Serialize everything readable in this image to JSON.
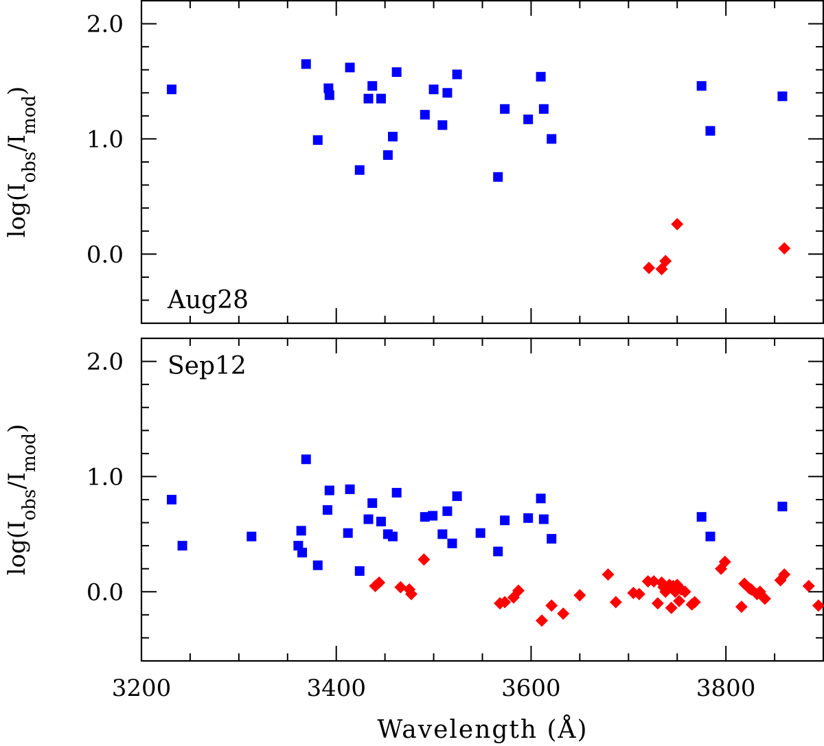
{
  "chart_data": {
    "type": "scatter",
    "xlabel": "Wavelength (Å)",
    "ylabel": {
      "prefix": "log(I",
      "num_sub": "obs",
      "mid": "/I",
      "den_sub": "mod",
      "suffix": ")"
    },
    "xlim": [
      3200,
      3900
    ],
    "xticks": [
      3200,
      3400,
      3600,
      3800
    ],
    "colors": {
      "blue_squares": "#0000ff",
      "red_diamonds": "#ff0000"
    },
    "panels": [
      {
        "name": "Aug28",
        "label": "Aug28",
        "ylim": [
          -0.6,
          2.2
        ],
        "yticks": [
          {
            "v": 0.0,
            "t": "0.0"
          },
          {
            "v": 1.0,
            "t": "1.0"
          },
          {
            "v": 2.0,
            "t": "2.0"
          }
        ],
        "series": [
          {
            "name": "blue_squares",
            "marker": "square",
            "points": [
              [
                3231,
                1.43
              ],
              [
                3369,
                1.65
              ],
              [
                3381,
                0.99
              ],
              [
                3392,
                1.44
              ],
              [
                3393,
                1.38
              ],
              [
                3414,
                1.62
              ],
              [
                3424,
                0.73
              ],
              [
                3433,
                1.35
              ],
              [
                3437,
                1.46
              ],
              [
                3446,
                1.35
              ],
              [
                3453,
                0.86
              ],
              [
                3458,
                1.02
              ],
              [
                3462,
                1.58
              ],
              [
                3491,
                1.21
              ],
              [
                3500,
                1.43
              ],
              [
                3509,
                1.12
              ],
              [
                3514,
                1.4
              ],
              [
                3524,
                1.56
              ],
              [
                3566,
                0.67
              ],
              [
                3573,
                1.26
              ],
              [
                3597,
                1.17
              ],
              [
                3610,
                1.54
              ],
              [
                3613,
                1.26
              ],
              [
                3621,
                1.0
              ],
              [
                3775,
                1.46
              ],
              [
                3784,
                1.07
              ],
              [
                3858,
                1.37
              ]
            ]
          },
          {
            "name": "red_diamonds",
            "marker": "diamond",
            "points": [
              [
                3721,
                -0.12
              ],
              [
                3734,
                -0.13
              ],
              [
                3738,
                -0.06
              ],
              [
                3750,
                0.26
              ],
              [
                3860,
                0.05
              ]
            ]
          }
        ]
      },
      {
        "name": "Sep12",
        "label": "Sep12",
        "ylim": [
          -0.6,
          2.2
        ],
        "yticks": [
          {
            "v": 0.0,
            "t": "0.0"
          },
          {
            "v": 1.0,
            "t": "1.0"
          },
          {
            "v": 2.0,
            "t": "2.0"
          }
        ],
        "series": [
          {
            "name": "blue_squares",
            "marker": "square",
            "points": [
              [
                3231,
                0.8
              ],
              [
                3242,
                0.4
              ],
              [
                3313,
                0.48
              ],
              [
                3361,
                0.4
              ],
              [
                3364,
                0.53
              ],
              [
                3365,
                0.34
              ],
              [
                3369,
                1.15
              ],
              [
                3381,
                0.23
              ],
              [
                3391,
                0.71
              ],
              [
                3393,
                0.88
              ],
              [
                3412,
                0.51
              ],
              [
                3414,
                0.89
              ],
              [
                3424,
                0.18
              ],
              [
                3433,
                0.63
              ],
              [
                3437,
                0.77
              ],
              [
                3446,
                0.61
              ],
              [
                3453,
                0.5
              ],
              [
                3458,
                0.48
              ],
              [
                3462,
                0.86
              ],
              [
                3491,
                0.65
              ],
              [
                3499,
                0.66
              ],
              [
                3509,
                0.5
              ],
              [
                3514,
                0.7
              ],
              [
                3519,
                0.42
              ],
              [
                3524,
                0.83
              ],
              [
                3548,
                0.51
              ],
              [
                3566,
                0.35
              ],
              [
                3573,
                0.62
              ],
              [
                3597,
                0.64
              ],
              [
                3610,
                0.81
              ],
              [
                3613,
                0.63
              ],
              [
                3621,
                0.46
              ],
              [
                3775,
                0.65
              ],
              [
                3784,
                0.48
              ],
              [
                3858,
                0.74
              ]
            ]
          },
          {
            "name": "red_diamonds",
            "marker": "diamond",
            "points": [
              [
                3440,
                0.05
              ],
              [
                3444,
                0.08
              ],
              [
                3466,
                0.04
              ],
              [
                3475,
                0.02
              ],
              [
                3477,
                -0.02
              ],
              [
                3490,
                0.28
              ],
              [
                3568,
                -0.1
              ],
              [
                3573,
                -0.09
              ],
              [
                3582,
                -0.05
              ],
              [
                3587,
                0.01
              ],
              [
                3611,
                -0.25
              ],
              [
                3621,
                -0.12
              ],
              [
                3633,
                -0.19
              ],
              [
                3650,
                -0.03
              ],
              [
                3679,
                0.15
              ],
              [
                3687,
                -0.09
              ],
              [
                3705,
                -0.01
              ],
              [
                3711,
                -0.02
              ],
              [
                3720,
                0.09
              ],
              [
                3726,
                0.09
              ],
              [
                3730,
                -0.1
              ],
              [
                3734,
                0.08
              ],
              [
                3736,
                0.04
              ],
              [
                3738,
                0.0
              ],
              [
                3740,
                0.03
              ],
              [
                3742,
                0.06
              ],
              [
                3744,
                -0.14
              ],
              [
                3746,
                0.05
              ],
              [
                3748,
                0.0
              ],
              [
                3750,
                0.06
              ],
              [
                3752,
                -0.08
              ],
              [
                3754,
                0.02
              ],
              [
                3758,
                0.0
              ],
              [
                3765,
                -0.11
              ],
              [
                3768,
                -0.09
              ],
              [
                3795,
                0.2
              ],
              [
                3799,
                0.26
              ],
              [
                3816,
                -0.13
              ],
              [
                3819,
                0.07
              ],
              [
                3824,
                0.03
              ],
              [
                3826,
                0.02
              ],
              [
                3832,
                -0.02
              ],
              [
                3835,
                0.0
              ],
              [
                3840,
                -0.06
              ],
              [
                3856,
                0.1
              ],
              [
                3860,
                0.15
              ],
              [
                3885,
                0.05
              ],
              [
                3895,
                -0.12
              ]
            ]
          }
        ]
      }
    ]
  }
}
